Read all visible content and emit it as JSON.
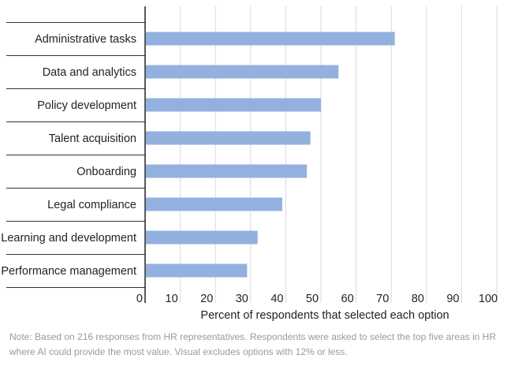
{
  "chart_data": {
    "type": "bar",
    "orientation": "horizontal",
    "categories": [
      "Administrative tasks",
      "Data and analytics",
      "Policy development",
      "Talent acquisition",
      "Onboarding",
      "Legal compliance",
      "Learning and development",
      "Performance management"
    ],
    "values": [
      71,
      55,
      50,
      47,
      46,
      39,
      32,
      29
    ],
    "xlabel": "Percent of respondents that selected each option",
    "ylabel": "",
    "xlim": [
      0,
      100
    ],
    "xticks": [
      "0",
      "10",
      "20",
      "30",
      "40",
      "50",
      "60",
      "70",
      "80",
      "90",
      "100"
    ],
    "grid": "vertical",
    "bar_color": "#93b1df"
  },
  "note": "Note: Based on 216 responses from HR representatives. Respondents were asked to select the top five areas in HR where AI could provide the most value. Visual excludes options with 12% or less."
}
